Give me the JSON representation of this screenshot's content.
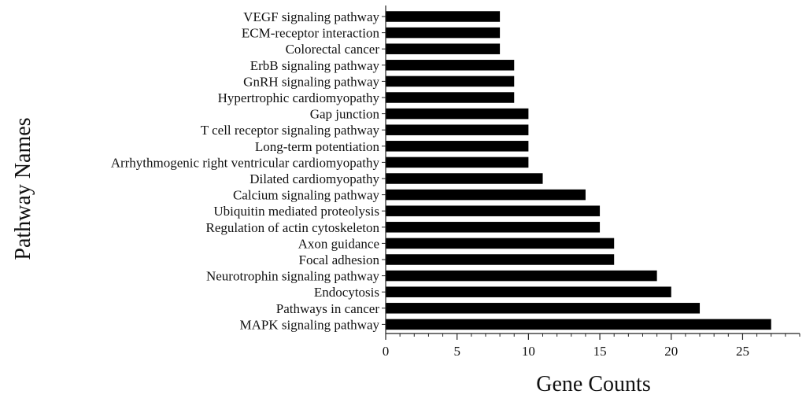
{
  "chart_data": {
    "type": "bar",
    "orientation": "horizontal",
    "categories": [
      "VEGF signaling pathway",
      "ECM-receptor interaction",
      "Colorectal cancer",
      "ErbB signaling pathway",
      "GnRH signaling pathway",
      "Hypertrophic cardiomyopathy",
      "Gap junction",
      "T cell receptor signaling pathway",
      "Long-term potentiation",
      "Arrhythmogenic right ventricular cardiomyopathy",
      "Dilated cardiomyopathy",
      "Calcium signaling pathway",
      "Ubiquitin mediated proteolysis",
      "Regulation of actin cytoskeleton",
      "Axon guidance",
      "Focal adhesion",
      "Neurotrophin signaling pathway",
      "Endocytosis",
      "Pathways in cancer",
      "MAPK signaling pathway"
    ],
    "values": [
      8,
      8,
      8,
      9,
      9,
      9,
      10,
      10,
      10,
      10,
      11,
      14,
      15,
      15,
      16,
      16,
      19,
      20,
      22,
      27
    ],
    "xlabel": "Gene Counts",
    "ylabel": "Pathway Names",
    "xlim": [
      0,
      29
    ],
    "xticks": [
      0,
      5,
      10,
      15,
      20,
      25
    ],
    "bar_color": "#000000",
    "axis_color": "#222222",
    "grid": false,
    "legend": "none"
  }
}
